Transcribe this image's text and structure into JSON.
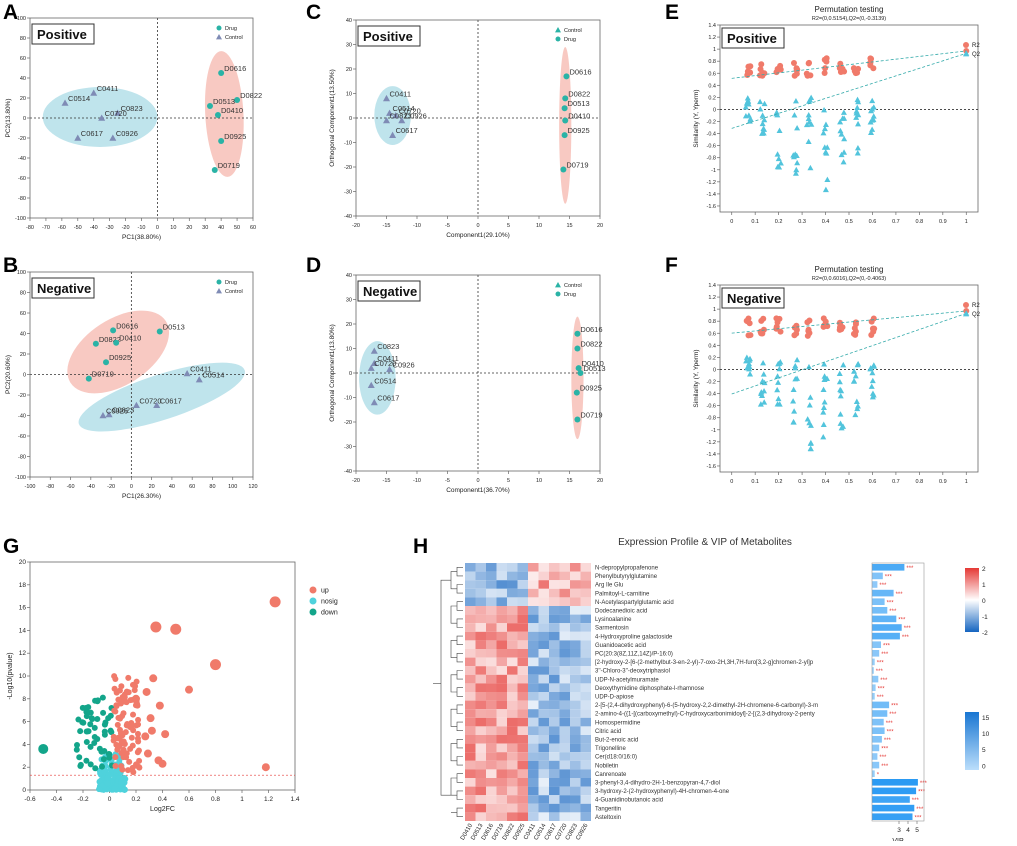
{
  "figure_title": "Multi-panel metabolomics figure",
  "colors": {
    "drug": "#2ab3a6",
    "control": "#7f8bb5",
    "ellipse_drug": "#f6b7ae",
    "ellipse_control": "#a9dbe6",
    "r2": "#f07a6a",
    "q2": "#52c4dc",
    "up": "#f07a6a",
    "nosig": "#4fd2dc",
    "down": "#13a58a",
    "vip_bar": "#2196f3",
    "stars": "#e53935",
    "heat_high": "#e53935",
    "heat_mid": "#ffffff",
    "heat_low": "#1565c0"
  },
  "panel_letters": [
    "A",
    "B",
    "C",
    "D",
    "E",
    "F",
    "G",
    "H"
  ],
  "chart_data": [
    {
      "id": "A",
      "type": "scatter",
      "box_label": "Positive",
      "xlabel": "PC1(38.80%)",
      "ylabel": "PC2(13.80%)",
      "xlim": [
        -80,
        60
      ],
      "ylim": [
        -100,
        100
      ],
      "xticks": [
        -80,
        -70,
        -60,
        -50,
        -40,
        -30,
        -20,
        -10,
        0,
        10,
        20,
        30,
        40,
        50,
        60
      ],
      "yticks": [
        -100,
        -80,
        -60,
        -40,
        -20,
        0,
        20,
        40,
        60,
        80,
        100
      ],
      "legend": [
        "Drug",
        "Control"
      ],
      "series": [
        {
          "name": "Drug",
          "marker": "circle",
          "points": [
            {
              "label": "D0616",
              "x": 40,
              "y": 45
            },
            {
              "label": "D0822",
              "x": 50,
              "y": 18
            },
            {
              "label": "D0513",
              "x": 33,
              "y": 12
            },
            {
              "label": "D0410",
              "x": 38,
              "y": 3
            },
            {
              "label": "D0925",
              "x": 40,
              "y": -23
            },
            {
              "label": "D0719",
              "x": 36,
              "y": -52
            }
          ]
        },
        {
          "name": "Control",
          "marker": "triangle",
          "points": [
            {
              "label": "C0514",
              "x": -58,
              "y": 15
            },
            {
              "label": "C0411",
              "x": -40,
              "y": 25
            },
            {
              "label": "C0823",
              "x": -25,
              "y": 5
            },
            {
              "label": "C0720",
              "x": -35,
              "y": 0
            },
            {
              "label": "C0617",
              "x": -50,
              "y": -20
            },
            {
              "label": "C0926",
              "x": -28,
              "y": -20
            }
          ]
        }
      ],
      "ellipses": [
        {
          "group": "Control",
          "cx": -36,
          "cy": 1,
          "rx": 36,
          "ry": 30,
          "angle": 0
        },
        {
          "group": "Drug",
          "cx": 42,
          "cy": 4,
          "rx": 12,
          "ry": 63,
          "angle": -3
        }
      ]
    },
    {
      "id": "B",
      "type": "scatter",
      "box_label": "Negative",
      "xlabel": "PC1(26.30%)",
      "ylabel": "PC2(20.60%)",
      "xlim": [
        -100,
        120
      ],
      "ylim": [
        -100,
        100
      ],
      "xticks": [
        -100,
        -80,
        -60,
        -40,
        -20,
        0,
        20,
        40,
        60,
        80,
        100,
        120
      ],
      "yticks": [
        -100,
        -80,
        -60,
        -40,
        -20,
        0,
        20,
        40,
        60,
        80,
        100
      ],
      "legend": [
        "Drug",
        "Control"
      ],
      "series": [
        {
          "name": "Drug",
          "marker": "circle",
          "points": [
            {
              "label": "D0616",
              "x": -18,
              "y": 43
            },
            {
              "label": "D0513",
              "x": 28,
              "y": 42
            },
            {
              "label": "D0822",
              "x": -35,
              "y": 30
            },
            {
              "label": "D0410",
              "x": -15,
              "y": 31
            },
            {
              "label": "D0925",
              "x": -25,
              "y": 12
            },
            {
              "label": "D0719",
              "x": -42,
              "y": -4
            }
          ]
        },
        {
          "name": "Control",
          "marker": "triangle",
          "points": [
            {
              "label": "C0411",
              "x": 55,
              "y": 1
            },
            {
              "label": "C0514",
              "x": 67,
              "y": -5
            },
            {
              "label": "C0720",
              "x": 5,
              "y": -30
            },
            {
              "label": "C0617",
              "x": 25,
              "y": -30
            },
            {
              "label": "C0823",
              "x": -22,
              "y": -39
            },
            {
              "label": "C0926",
              "x": -28,
              "y": -40
            }
          ]
        }
      ],
      "ellipses": [
        {
          "group": "Drug",
          "cx": -13,
          "cy": 22,
          "rx": 56,
          "ry": 32,
          "angle": -33
        },
        {
          "group": "Control",
          "cx": 30,
          "cy": -22,
          "rx": 86,
          "ry": 22,
          "angle": -18
        }
      ]
    },
    {
      "id": "C",
      "type": "scatter",
      "box_label": "Positive",
      "xlabel": "Component1(29.10%)",
      "ylabel": "Orthogonal Component1(13.50%)",
      "xlim": [
        -20,
        20
      ],
      "ylim": [
        -40,
        40
      ],
      "xticks": [
        -20,
        -15,
        -10,
        -5,
        0,
        5,
        10,
        15,
        20
      ],
      "yticks": [
        -40,
        -30,
        -20,
        -10,
        0,
        10,
        20,
        30,
        40
      ],
      "legend": [
        "Control",
        "Drug"
      ],
      "series": [
        {
          "name": "Control",
          "marker": "triangle",
          "points": [
            {
              "label": "C0411",
              "x": -15,
              "y": 8
            },
            {
              "label": "C0514",
              "x": -14.5,
              "y": 2
            },
            {
              "label": "C0720",
              "x": -13.5,
              "y": 1
            },
            {
              "label": "C0823",
              "x": -15,
              "y": -1
            },
            {
              "label": "C0926",
              "x": -12.5,
              "y": -1
            },
            {
              "label": "C0617",
              "x": -14,
              "y": -7
            }
          ]
        },
        {
          "name": "Drug",
          "marker": "circle",
          "points": [
            {
              "label": "D0616",
              "x": 14.5,
              "y": 17
            },
            {
              "label": "D0822",
              "x": 14.3,
              "y": 8
            },
            {
              "label": "D0513",
              "x": 14.2,
              "y": 4
            },
            {
              "label": "D0410",
              "x": 14.3,
              "y": -1
            },
            {
              "label": "D0925",
              "x": 14.2,
              "y": -7
            },
            {
              "label": "D0719",
              "x": 14,
              "y": -21
            }
          ]
        }
      ],
      "ellipses": [
        {
          "group": "Control",
          "cx": -14,
          "cy": 1,
          "rx": 3,
          "ry": 12,
          "angle": 0
        },
        {
          "group": "Drug",
          "cx": 14.3,
          "cy": -3,
          "rx": 1,
          "ry": 32,
          "angle": 0
        }
      ]
    },
    {
      "id": "D",
      "type": "scatter",
      "box_label": "Negative",
      "xlabel": "Component1(36.70%)",
      "ylabel": "Orthogonal Component1(13.80%)",
      "xlim": [
        -20,
        20
      ],
      "ylim": [
        -40,
        40
      ],
      "xticks": [
        -20,
        -15,
        -10,
        -5,
        0,
        5,
        10,
        15,
        20
      ],
      "yticks": [
        -40,
        -30,
        -20,
        -10,
        0,
        10,
        20,
        30,
        40
      ],
      "legend": [
        "Control",
        "Drug"
      ],
      "series": [
        {
          "name": "Control",
          "marker": "triangle",
          "points": [
            {
              "label": "C0823",
              "x": -17,
              "y": 9
            },
            {
              "label": "C0411",
              "x": -17,
              "y": 4
            },
            {
              "label": "C0720",
              "x": -17.5,
              "y": 2
            },
            {
              "label": "C0926",
              "x": -14.5,
              "y": 1.5
            },
            {
              "label": "C0514",
              "x": -17.5,
              "y": -5
            },
            {
              "label": "C0617",
              "x": -17,
              "y": -12
            }
          ]
        },
        {
          "name": "Drug",
          "marker": "circle",
          "points": [
            {
              "label": "D0616",
              "x": 16.3,
              "y": 16
            },
            {
              "label": "D0822",
              "x": 16.3,
              "y": 10
            },
            {
              "label": "D0410",
              "x": 16.5,
              "y": 2
            },
            {
              "label": "D0513",
              "x": 16.8,
              "y": 0
            },
            {
              "label": "D0925",
              "x": 16.2,
              "y": -8
            },
            {
              "label": "D0719",
              "x": 16.3,
              "y": -19
            }
          ]
        }
      ],
      "ellipses": [
        {
          "group": "Control",
          "cx": -16.5,
          "cy": -2,
          "rx": 3,
          "ry": 15,
          "angle": 0
        },
        {
          "group": "Drug",
          "cx": 16.3,
          "cy": -2,
          "rx": 1,
          "ry": 25,
          "angle": 0
        }
      ]
    },
    {
      "id": "E",
      "type": "scatter",
      "box_label": "Positive",
      "title": "Permutation testing",
      "subtitle": "R2=(0,0.5154),Q2=(0,-0.3139)",
      "xlabel": "",
      "ylabel": "Similarity (Y, Yperm)",
      "xlim": [
        -0.05,
        1.05
      ],
      "ylim": [
        -1.7,
        1.4
      ],
      "xticks": [
        0,
        0.1,
        0.2,
        0.3,
        0.4,
        0.5,
        0.6,
        0.7,
        0.8,
        0.9,
        1
      ],
      "yticks": [
        1.4,
        1.2,
        1,
        0.8,
        0.6,
        0.4,
        0.2,
        0,
        -0.2,
        -0.4,
        -0.6,
        -0.8,
        -1,
        -1.2,
        -1.4,
        -1.6
      ],
      "legend": [
        "R2",
        "Q2"
      ],
      "r2_intercept": 0.5154,
      "q2_intercept": -0.3139,
      "r2_observed": 0.97,
      "q2_observed": 0.93,
      "cols": [
        0.07,
        0.13,
        0.2,
        0.27,
        0.33,
        0.4,
        0.47,
        0.53,
        0.6
      ],
      "q2_low": [
        -0.2,
        -0.5,
        -1.0,
        -1.1,
        -1.0,
        -1.4,
        -0.9,
        -0.8,
        -0.4
      ]
    },
    {
      "id": "F",
      "type": "scatter",
      "box_label": "Negative",
      "title": "Permutation testing",
      "subtitle": "R2=(0,0.6016),Q2=(0,-0.4063)",
      "xlabel": "",
      "ylabel": "Similarity (Y, Yperm)",
      "xlim": [
        -0.05,
        1.05
      ],
      "ylim": [
        -1.7,
        1.4
      ],
      "xticks": [
        0,
        0.1,
        0.2,
        0.3,
        0.4,
        0.5,
        0.6,
        0.7,
        0.8,
        0.9,
        1
      ],
      "yticks": [
        1.4,
        1.2,
        1,
        0.8,
        0.6,
        0.4,
        0.2,
        0,
        -0.2,
        -0.4,
        -0.6,
        -0.8,
        -1,
        -1.2,
        -1.4,
        -1.6
      ],
      "legend": [
        "R2",
        "Q2"
      ],
      "r2_intercept": 0.6016,
      "q2_intercept": -0.4063,
      "r2_observed": 0.97,
      "q2_observed": 0.93,
      "cols": [
        0.07,
        0.13,
        0.2,
        0.27,
        0.33,
        0.4,
        0.47,
        0.53,
        0.6
      ],
      "q2_low": [
        -0.2,
        -0.6,
        -0.8,
        -1.2,
        -1.5,
        -1.4,
        -1.0,
        -0.9,
        -0.5
      ]
    },
    {
      "id": "G",
      "type": "scatter",
      "xlabel": "Log2FC",
      "ylabel": "-Log10(pvalue)",
      "xlim": [
        -0.6,
        1.4
      ],
      "ylim": [
        0,
        20
      ],
      "xticks": [
        -0.6,
        -0.4,
        -0.2,
        0,
        0.2,
        0.4,
        0.6,
        0.8,
        1,
        1.2,
        1.4
      ],
      "yticks": [
        0,
        2,
        4,
        6,
        8,
        10,
        12,
        14,
        16,
        18,
        20
      ],
      "legend": [
        "up",
        "nosig",
        "down"
      ],
      "threshold_y": 1.3,
      "highlight_up": [
        {
          "x": 1.25,
          "y": 16.5
        },
        {
          "x": 0.35,
          "y": 14.3
        },
        {
          "x": 0.5,
          "y": 14.1
        },
        {
          "x": 0.8,
          "y": 11.0
        },
        {
          "x": 0.6,
          "y": 8.8
        },
        {
          "x": 1.18,
          "y": 2.0
        },
        {
          "x": 0.33,
          "y": 9.8
        },
        {
          "x": 0.28,
          "y": 8.6
        },
        {
          "x": 0.2,
          "y": 8.0
        },
        {
          "x": 0.38,
          "y": 7.4
        },
        {
          "x": 0.31,
          "y": 6.3
        },
        {
          "x": 0.32,
          "y": 5.2
        },
        {
          "x": 0.42,
          "y": 4.9
        },
        {
          "x": 0.27,
          "y": 4.7
        },
        {
          "x": 0.29,
          "y": 3.2
        },
        {
          "x": 0.37,
          "y": 2.6
        },
        {
          "x": 0.4,
          "y": 2.3
        }
      ],
      "highlight_down": [
        {
          "x": -0.5,
          "y": 3.6
        },
        {
          "x": -0.05,
          "y": 8.1
        }
      ]
    },
    {
      "id": "H",
      "type": "heatmap",
      "title": "Expression Profile & VIP of Metabolites",
      "samples": [
        "D0410",
        "D0513",
        "D0616",
        "D0719",
        "D0822",
        "D0925",
        "C0411",
        "C0514",
        "C0617",
        "C0720",
        "C0823",
        "C0926"
      ],
      "metabolites": [
        "N-depropylpropafenone",
        "Phenylbutyrylglutamine",
        "Arg Ile Glu",
        "Palmitoyl-L-carnitine",
        "N-Acetylaspartylglutamic acid",
        "Dodecanedioic acid",
        "Lysinoalanine",
        "Sarmentosin",
        "4-Hydroxyproline galactoside",
        "Guanidoacetic acid",
        "PC(20:3(8Z,11Z,14Z)/P-16:0)",
        "[2-hydroxy-2-[6-(2-methylbut-3-en-2-yl)-7-oxo-2H,3H,7H-furo[3,2-g]chromen-2-yl]p",
        "3''-Chloro-3''-deoxytriphasiol",
        "UDP-N-acetylmuramate",
        "Deoxythymidine diphosphate-l-rhamnose",
        "UDP-D-apiose",
        "2-[5-(2,4-dihydroxyphenyl)-6-(5-hydroxy-2,2-dimethyl-2H-chromene-6-carbonyl)-3-m",
        "2-amino-4-({1-[(carboxymethyl)-C-hydroxycarbonimidoyl]-2-[(2,3-dihydroxy-2-penty",
        "Homospermidine",
        "Citric acid",
        "But-2-enoic acid",
        "Trigonelline",
        "Cer(d18:0/16:0)",
        "Nobiletin",
        "Canrenoate",
        "3-phenyl-3,4-dihydro-2H-1-benzopyran-4,7-diol",
        "3-hydroxy-2-(2-hydroxyphenyl)-4H-chromen-4-one",
        "4-Guanidinobutanoic acid",
        "Tangeritin",
        "Asteltoxin"
      ],
      "vip": [
        3.6,
        1.2,
        0.6,
        2.4,
        1.4,
        1.7,
        2.7,
        3.3,
        3.1,
        1.0,
        0.8,
        0.3,
        0.2,
        0.7,
        0.4,
        0.3,
        1.9,
        1.7,
        1.3,
        1.4,
        1.1,
        0.8,
        0.6,
        0.8,
        0.3,
        5.1,
        4.9,
        4.2,
        4.7,
        4.5
      ],
      "significance": [
        "***",
        "***",
        "***",
        "***",
        "***",
        "***",
        "***",
        "***",
        "***",
        "***",
        "***",
        "***",
        "***",
        "***",
        "***",
        "***",
        "***",
        "***",
        "***",
        "***",
        "***",
        "***",
        "***",
        "***",
        "*",
        "***",
        "***",
        "***",
        "***",
        "***"
      ],
      "z_scale_ticks": [
        "2",
        "1",
        "0",
        "-1",
        "-2"
      ],
      "vip_scale_ticks": [
        "15",
        "10",
        "5",
        "0"
      ],
      "vip_axis_ticks": [
        "3",
        "4",
        "5"
      ],
      "vip_xlabel": "VIP"
    }
  ]
}
